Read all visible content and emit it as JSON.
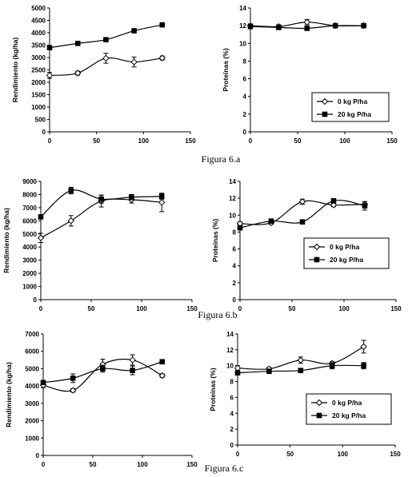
{
  "figure_labels": [
    "Figura 6.a",
    "Figura 6.b",
    "Figura 6.c"
  ],
  "series_style": {
    "0 kg P/ha": {
      "marker": "open-diamond",
      "color": "#000000"
    },
    "20 kg P/ha": {
      "marker": "filled-square",
      "color": "#000000"
    }
  },
  "chart_data": [
    {
      "id": "6a-rendimiento",
      "type": "line",
      "title": "",
      "xlabel": "",
      "ylabel": "Rendimiento (kg/ha)",
      "xlim": [
        0,
        150
      ],
      "xticks": [
        0,
        50,
        100,
        150
      ],
      "ylim": [
        0,
        5000
      ],
      "yticks": [
        0,
        500,
        1000,
        1500,
        2000,
        2500,
        3000,
        3500,
        4000,
        4500,
        5000
      ],
      "legend": null,
      "series": [
        {
          "name": "0 kg P/ha",
          "x": [
            0,
            30,
            60,
            90,
            120
          ],
          "y": [
            2280,
            2370,
            2970,
            2820,
            2980
          ],
          "err": [
            120,
            80,
            200,
            200,
            80
          ]
        },
        {
          "name": "20 kg P/ha",
          "x": [
            0,
            30,
            60,
            90,
            120
          ],
          "y": [
            3400,
            3570,
            3720,
            4080,
            4320
          ],
          "err": [
            0,
            0,
            0,
            0,
            0
          ]
        }
      ]
    },
    {
      "id": "6a-proteinas",
      "type": "line",
      "title": "",
      "xlabel": "",
      "ylabel": "Proteínas (%)",
      "xlim": [
        0,
        150
      ],
      "xticks": [
        0,
        50,
        100,
        150
      ],
      "ylim": [
        0,
        14
      ],
      "yticks": [
        0,
        2,
        4,
        6,
        8,
        10,
        12,
        14
      ],
      "legend": {
        "position": "bottom-right",
        "entries": [
          "0 kg P/ha",
          "20 kg P/ha"
        ]
      },
      "series": [
        {
          "name": "0 kg P/ha",
          "x": [
            0,
            30,
            60,
            90,
            120
          ],
          "y": [
            12.0,
            11.9,
            12.4,
            12.0,
            12.0
          ],
          "err": [
            0.2,
            0.2,
            0.3,
            0.1,
            0.1
          ]
        },
        {
          "name": "20 kg P/ha",
          "x": [
            0,
            30,
            60,
            90,
            120
          ],
          "y": [
            11.9,
            11.8,
            11.7,
            12.0,
            12.0
          ],
          "err": [
            0,
            0,
            0,
            0,
            0
          ]
        }
      ]
    },
    {
      "id": "6b-rendimiento",
      "type": "line",
      "title": "",
      "xlabel": "",
      "ylabel": "Rendimiento (kg/ha)",
      "xlim": [
        0,
        150
      ],
      "xticks": [
        0,
        50,
        100,
        150
      ],
      "ylim": [
        0,
        9000
      ],
      "yticks": [
        0,
        1000,
        2000,
        3000,
        4000,
        5000,
        6000,
        7000,
        8000,
        9000
      ],
      "legend": null,
      "series": [
        {
          "name": "0 kg P/ha",
          "x": [
            0,
            30,
            60,
            90,
            120
          ],
          "y": [
            4700,
            6000,
            7500,
            7600,
            7400
          ],
          "err": [
            350,
            400,
            450,
            250,
            700
          ]
        },
        {
          "name": "20 kg P/ha",
          "x": [
            0,
            30,
            60,
            90,
            120
          ],
          "y": [
            6300,
            8300,
            7650,
            7800,
            7850
          ],
          "err": [
            0,
            250,
            300,
            200,
            200
          ]
        }
      ]
    },
    {
      "id": "6b-proteinas",
      "type": "line",
      "title": "",
      "xlabel": "",
      "ylabel": "Proteínas (%)",
      "xlim": [
        0,
        150
      ],
      "xticks": [
        0,
        50,
        100,
        150
      ],
      "ylim": [
        0,
        14
      ],
      "yticks": [
        0,
        2,
        4,
        6,
        8,
        10,
        12,
        14
      ],
      "legend": {
        "position": "center-right",
        "entries": [
          "0 kg P/ha",
          "20 kg P/ha"
        ]
      },
      "series": [
        {
          "name": "0 kg P/ha",
          "x": [
            0,
            30,
            60,
            90,
            120
          ],
          "y": [
            9.0,
            9.1,
            11.6,
            11.2,
            11.3
          ],
          "err": [
            0.2,
            0.2,
            0.3,
            0.2,
            0.3
          ]
        },
        {
          "name": "20 kg P/ha",
          "x": [
            0,
            30,
            60,
            90,
            120
          ],
          "y": [
            8.5,
            9.3,
            9.2,
            11.7,
            11.1
          ],
          "err": [
            0.2,
            0.1,
            0.1,
            0.2,
            0.5
          ]
        }
      ]
    },
    {
      "id": "6c-rendimiento",
      "type": "line",
      "title": "",
      "xlabel": "",
      "ylabel": "Rendimiento (kg/ha)",
      "xlim": [
        0,
        150
      ],
      "xticks": [
        0,
        50,
        100,
        150
      ],
      "ylim": [
        0,
        7000
      ],
      "yticks": [
        0,
        1000,
        2000,
        3000,
        4000,
        5000,
        6000,
        7000
      ],
      "legend": null,
      "series": [
        {
          "name": "0 kg P/ha",
          "x": [
            0,
            30,
            60,
            90,
            120
          ],
          "y": [
            4050,
            3750,
            5250,
            5500,
            4600
          ],
          "err": [
            150,
            100,
            300,
            300,
            100
          ]
        },
        {
          "name": "20 kg P/ha",
          "x": [
            0,
            30,
            60,
            90,
            120
          ],
          "y": [
            4200,
            4450,
            5000,
            4900,
            5400
          ],
          "err": [
            100,
            250,
            200,
            250,
            100
          ]
        }
      ]
    },
    {
      "id": "6c-proteinas",
      "type": "line",
      "title": "",
      "xlabel": "",
      "ylabel": "Proteínas (%)",
      "xlim": [
        0,
        150
      ],
      "xticks": [
        0,
        50,
        100,
        150
      ],
      "ylim": [
        0,
        14
      ],
      "yticks": [
        0,
        2,
        4,
        6,
        8,
        10,
        12,
        14
      ],
      "legend": {
        "position": "bottom-right",
        "entries": [
          "0 kg P/ha",
          "20 kg P/ha"
        ]
      },
      "series": [
        {
          "name": "0 kg P/ha",
          "x": [
            0,
            30,
            60,
            90,
            120
          ],
          "y": [
            9.7,
            9.6,
            10.7,
            10.3,
            12.4
          ],
          "err": [
            0.3,
            0.2,
            0.4,
            0.2,
            0.8
          ]
        },
        {
          "name": "20 kg P/ha",
          "x": [
            0,
            30,
            60,
            90,
            120
          ],
          "y": [
            9.1,
            9.3,
            9.4,
            10.0,
            10.0
          ],
          "err": [
            0.2,
            0.1,
            0.1,
            0.4,
            0.4
          ]
        }
      ]
    }
  ]
}
